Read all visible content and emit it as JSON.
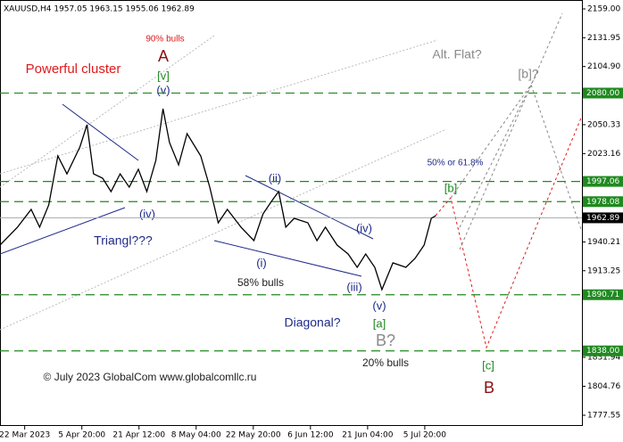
{
  "chart_data": {
    "type": "line",
    "title": "XAUUSD,H4  1957.05 1963.15 1955.06 1962.89",
    "color": "#000000",
    "x": [
      -38,
      -11,
      10,
      23,
      37,
      51,
      65,
      85,
      96,
      106,
      120,
      133,
      147,
      161,
      175,
      188,
      202,
      213,
      223,
      237,
      250,
      271,
      285,
      298,
      312,
      333,
      353,
      367,
      381,
      391,
      402,
      415,
      436,
      450,
      463,
      481,
      498,
      512,
      525,
      539,
      550,
      567,
      587,
      601,
      615,
      626,
      633
    ],
    "values": [
      1937.3,
      1954.1,
      1970.8,
      1954.1,
      1975.0,
      2021.0,
      2004.2,
      2029.3,
      2050.3,
      2004.2,
      2000.1,
      1987.5,
      2004.2,
      1991.7,
      2008.4,
      1987.5,
      2016.8,
      2065.3,
      2033.5,
      2012.6,
      2041.9,
      2021.0,
      1991.7,
      1958.2,
      1970.8,
      1954.1,
      1941.5,
      1966.6,
      1979.2,
      1987.5,
      1954.1,
      1962.4,
      1958.2,
      1941.5,
      1954.1,
      1937.3,
      1929.0,
      1916.4,
      1929.0,
      1916.4,
      1895.5,
      1920.6,
      1916.4,
      1924.8,
      1937.3,
      1962.4,
      1964.9
    ],
    "xlim": [
      -38,
      858
    ],
    "ylim": [
      1777.55,
      2159.0
    ],
    "yticks": [
      {
        "value": 2159.0,
        "label": "2159.00"
      },
      {
        "value": 2131.95,
        "label": "2131.95"
      },
      {
        "value": 2104.9,
        "label": "2104.90"
      },
      {
        "value": 2050.33,
        "label": "2050.33"
      },
      {
        "value": 2023.16,
        "label": "2023.16"
      },
      {
        "value": 1940.21,
        "label": "1940.21"
      },
      {
        "value": 1913.25,
        "label": "1913.25"
      },
      1831.94,
      1804.76,
      1777.55
    ],
    "xticks": [
      {
        "value": 0,
        "label": "22 Mar 2023"
      },
      {
        "value": 88,
        "label": "5 Apr 20:00"
      },
      {
        "value": 176,
        "label": "21 Apr 12:00"
      },
      {
        "value": 264,
        "label": "8 May 04:00"
      },
      {
        "value": 352,
        "label": "22 May 20:00"
      },
      {
        "value": 440,
        "label": "6 Jun 12:00"
      },
      {
        "value": 528,
        "label": "21 Jun 04:00"
      },
      {
        "value": 616,
        "label": "5 Jul 20:00"
      }
    ],
    "levels": [
      {
        "value": 2080.0,
        "label": "2080.00"
      },
      {
        "value": 1997.06,
        "label": "1997.06"
      },
      {
        "value": 1978.08,
        "label": "1978.08"
      },
      {
        "value": 1890.71,
        "label": "1890.71"
      },
      {
        "value": 1838.0,
        "label": "1838.00"
      }
    ],
    "level_color": "#1f8a1f",
    "current_price": {
      "value": 1962.89,
      "label": "1962.89"
    },
    "annotations": [
      "90% bulls",
      "A",
      "[v]",
      "(v)",
      "Powerful cluster",
      "(iv)",
      "Triangl???",
      "Alt. Flat?",
      "[b]?",
      "50% or 61.8%",
      "[b]",
      "(ii)",
      "(iv)",
      "(i)",
      "58% bulls",
      "(iii)",
      "(v)",
      "[a]",
      "Diagonal?",
      "B?",
      "20% bulls",
      "[c]",
      "B",
      "© July 2023 GlobalCom www.globalcomllc.ru"
    ]
  }
}
